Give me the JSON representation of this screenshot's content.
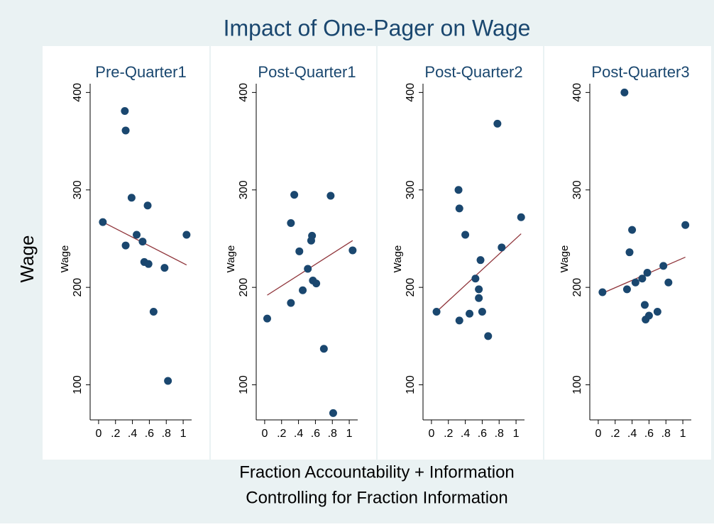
{
  "figure": {
    "title": "Impact of One-Pager on Wage",
    "ylabel": "Wage",
    "xlabel": [
      "Fraction Accountability + Information",
      "Controlling for Fraction Information"
    ]
  },
  "chart_data": [
    {
      "type": "scatter",
      "title": "Pre-Quarter1",
      "ylabel": "Wage",
      "xlim": [
        -0.1,
        1.1
      ],
      "ylim": [
        64,
        409
      ],
      "xticks": [
        0,
        {
          "value": 0.2,
          "label": ".2"
        },
        {
          "value": 0.4,
          "label": ".4"
        },
        {
          "value": 0.6,
          "label": ".6"
        },
        {
          "value": 0.8,
          "label": ".8"
        },
        1
      ],
      "yticks": [
        100,
        200,
        300,
        400
      ],
      "points": {
        "color": "#1a476f",
        "x": [
          0.05,
          0.31,
          0.32,
          0.39,
          0.32,
          0.45,
          0.52,
          0.58,
          0.54,
          0.59,
          0.65,
          0.78,
          0.82,
          1.04
        ],
        "values": [
          267,
          381,
          361,
          292,
          243,
          254,
          247,
          284,
          226,
          224,
          175,
          220,
          104,
          254
        ]
      },
      "fit_line": {
        "color": "#90353b",
        "x": [
          0.05,
          1.04
        ],
        "values": [
          267,
          223
        ]
      }
    },
    {
      "type": "scatter",
      "title": "Post-Quarter1",
      "ylabel": "Wage",
      "xlim": [
        -0.1,
        1.1
      ],
      "ylim": [
        64,
        409
      ],
      "xticks": [
        0,
        {
          "value": 0.2,
          "label": ".2"
        },
        {
          "value": 0.4,
          "label": ".4"
        },
        {
          "value": 0.6,
          "label": ".6"
        },
        {
          "value": 0.8,
          "label": ".8"
        },
        1
      ],
      "yticks": [
        100,
        200,
        300,
        400
      ],
      "points": {
        "color": "#1a476f",
        "x": [
          0.03,
          0.31,
          0.35,
          0.31,
          0.41,
          0.45,
          0.51,
          0.55,
          0.56,
          0.57,
          0.61,
          0.7,
          0.81,
          0.78,
          1.04
        ],
        "values": [
          168,
          184,
          295,
          266,
          237,
          197,
          219,
          248,
          253,
          207,
          204,
          137,
          71,
          294,
          238
        ]
      },
      "fit_line": {
        "color": "#90353b",
        "x": [
          0.03,
          1.04
        ],
        "values": [
          192,
          248
        ]
      }
    },
    {
      "type": "scatter",
      "title": "Post-Quarter2",
      "ylabel": "Wage",
      "xlim": [
        -0.1,
        1.1
      ],
      "ylim": [
        64,
        409
      ],
      "xticks": [
        0,
        {
          "value": 0.2,
          "label": ".2"
        },
        {
          "value": 0.4,
          "label": ".4"
        },
        {
          "value": 0.6,
          "label": ".6"
        },
        {
          "value": 0.8,
          "label": ".8"
        },
        1
      ],
      "yticks": [
        100,
        200,
        300,
        400
      ],
      "points": {
        "color": "#1a476f",
        "x": [
          0.06,
          0.32,
          0.33,
          0.4,
          0.33,
          0.45,
          0.52,
          0.56,
          0.56,
          0.58,
          0.6,
          0.67,
          0.78,
          0.83,
          1.06
        ],
        "values": [
          175,
          300,
          281,
          254,
          166,
          173,
          209,
          198,
          189,
          228,
          175,
          150,
          368,
          241,
          272
        ]
      },
      "fit_line": {
        "color": "#90353b",
        "x": [
          0.06,
          1.06
        ],
        "values": [
          175,
          255
        ]
      }
    },
    {
      "type": "scatter",
      "title": "Post-Quarter3",
      "ylabel": "Wage",
      "xlim": [
        -0.1,
        1.1
      ],
      "ylim": [
        64,
        409
      ],
      "xticks": [
        0,
        {
          "value": 0.2,
          "label": ".2"
        },
        {
          "value": 0.4,
          "label": ".4"
        },
        {
          "value": 0.6,
          "label": ".6"
        },
        {
          "value": 0.8,
          "label": ".8"
        },
        1
      ],
      "yticks": [
        100,
        200,
        300,
        400
      ],
      "points": {
        "color": "#1a476f",
        "x": [
          0.05,
          0.31,
          0.34,
          0.37,
          0.4,
          0.44,
          0.52,
          0.55,
          0.58,
          0.56,
          0.6,
          0.7,
          0.77,
          0.83,
          1.03
        ],
        "values": [
          195,
          400,
          198,
          236,
          259,
          205,
          209,
          182,
          215,
          167,
          171,
          175,
          222,
          205,
          264
        ]
      },
      "fit_line": {
        "color": "#90353b",
        "x": [
          0.05,
          1.03
        ],
        "values": [
          194,
          231
        ]
      }
    }
  ]
}
